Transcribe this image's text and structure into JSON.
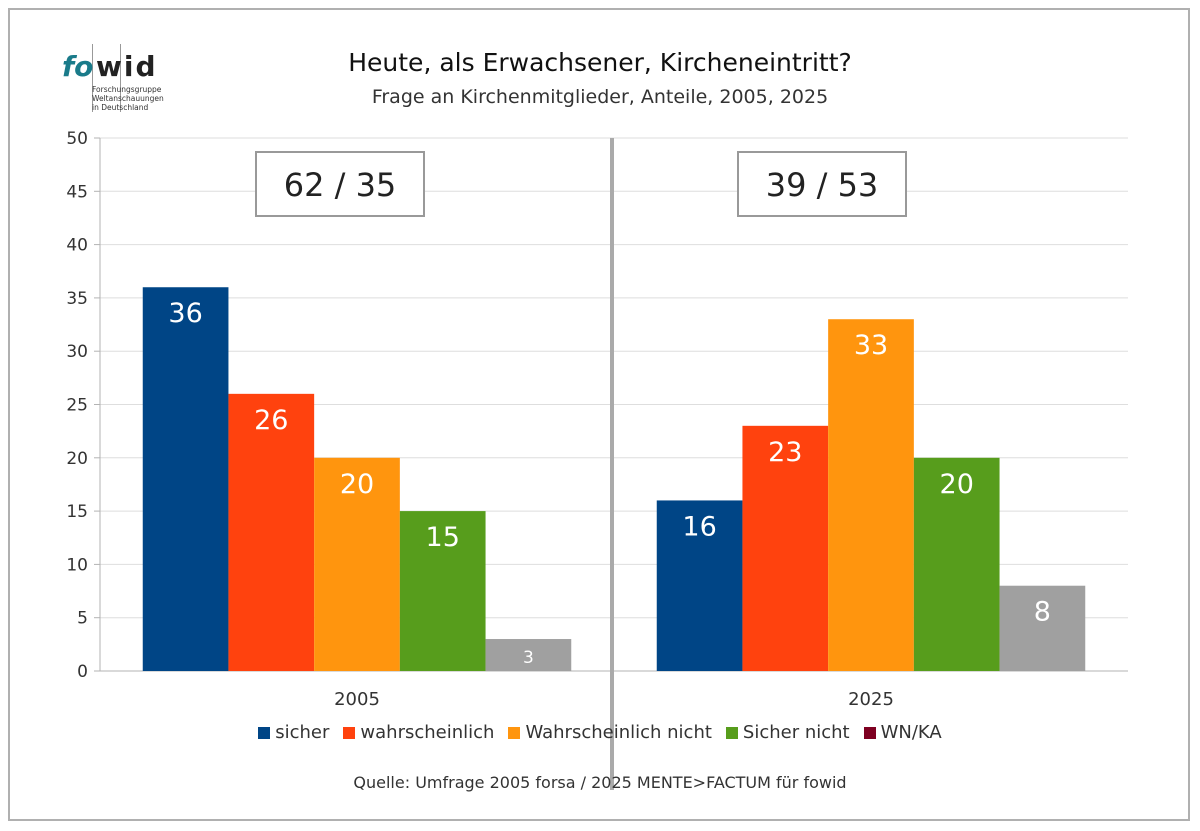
{
  "logo": {
    "text": "fowid",
    "subtitle": "Forschungsgruppe Weltanschauungen in Deutschland"
  },
  "chart_data": {
    "type": "bar",
    "title": "Heute, als Erwachsener, Kircheneintritt?",
    "subtitle": "Frage an Kirchenmitglieder, Anteile, 2005, 2025",
    "categories": [
      "2005",
      "2025"
    ],
    "ylim": [
      0,
      50
    ],
    "yticks": [
      0,
      5,
      10,
      15,
      20,
      25,
      30,
      35,
      40,
      45,
      50
    ],
    "grid": true,
    "legend_position": "bottom",
    "series": [
      {
        "name": "sicher",
        "color": "#004586",
        "values": [
          36,
          16
        ]
      },
      {
        "name": "wahrscheinlich",
        "color": "#ff420e",
        "values": [
          26,
          23
        ]
      },
      {
        "name": "Wahrscheinlich nicht",
        "color": "#ff950e",
        "values": [
          20,
          33
        ]
      },
      {
        "name": "Sicher nicht",
        "color": "#579d1c",
        "values": [
          15,
          20
        ]
      },
      {
        "name": "WN/KA",
        "color": "#7e0021",
        "bar_color": "#a0a0a0",
        "values": [
          3,
          8
        ]
      }
    ],
    "annotations": [
      "62 / 35",
      "39 / 53"
    ]
  },
  "source": "Quelle: Umfrage 2005 forsa / 2025 MENTE>FACTUM für fowid"
}
